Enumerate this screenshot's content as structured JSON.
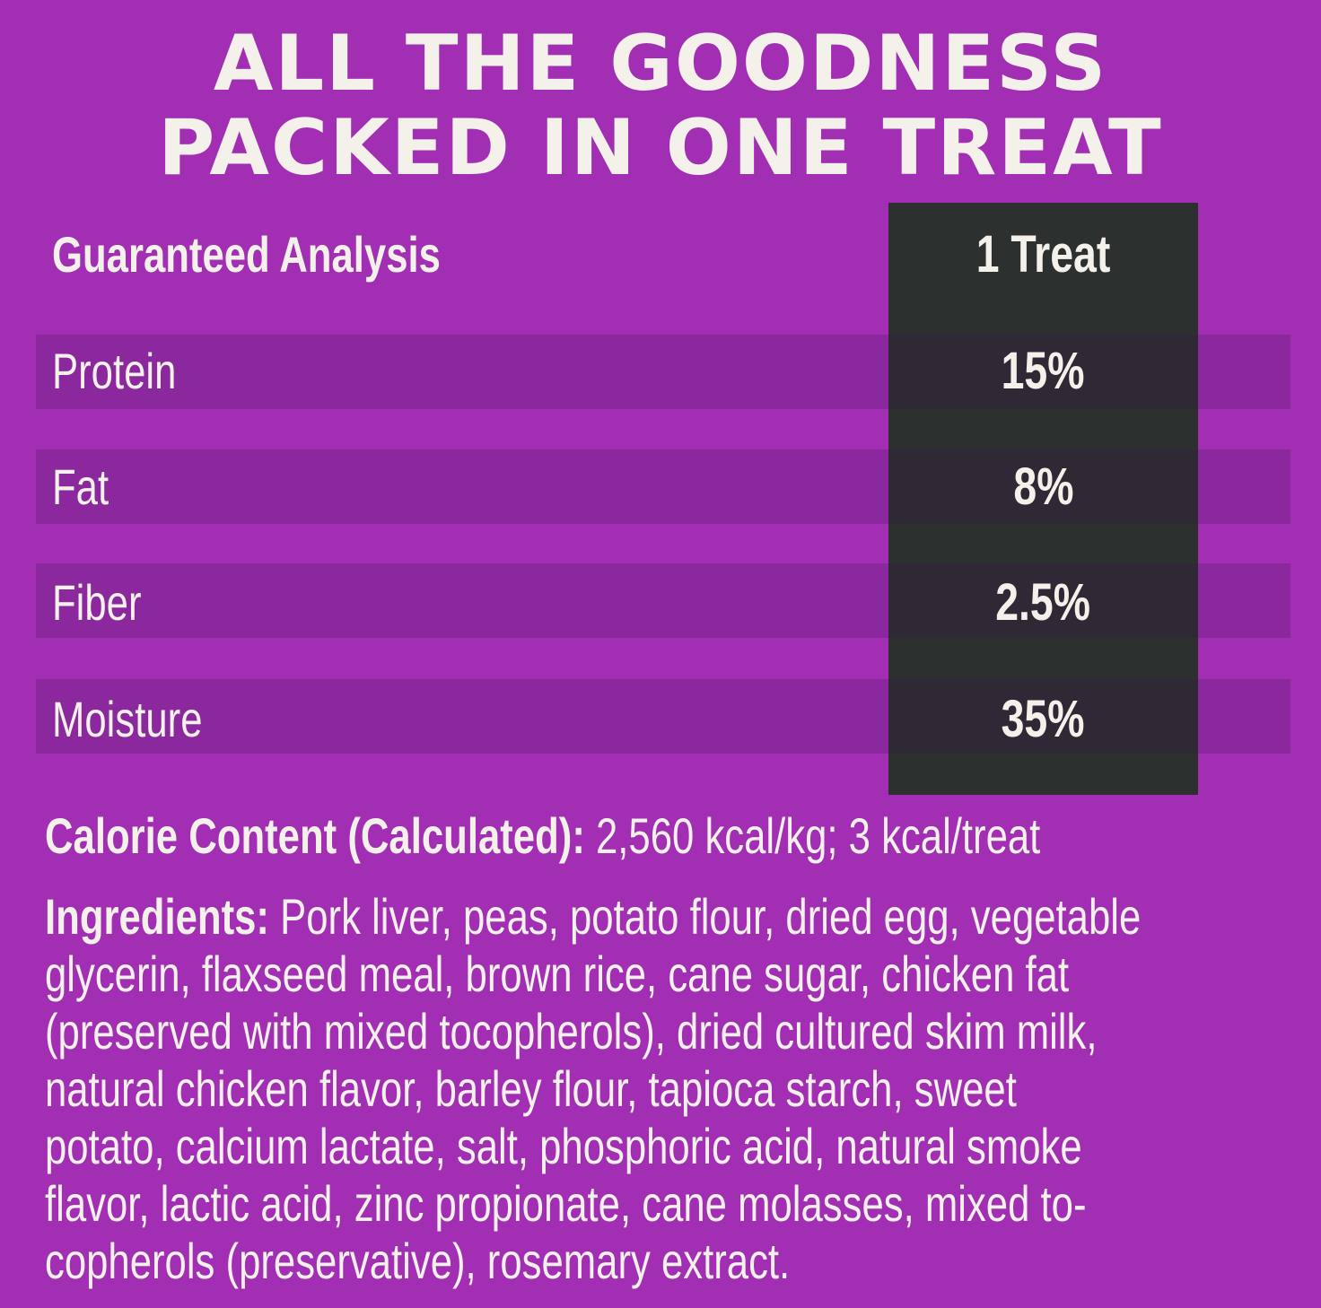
{
  "headline": {
    "line1": "ALL THE GOODNESS",
    "line2": "PACKED IN ONE TREAT"
  },
  "table": {
    "header_label": "Guaranteed Analysis",
    "column_header": "1 Treat",
    "rows": [
      {
        "label": "Protein",
        "value": "15%"
      },
      {
        "label": "Fat",
        "value": "8%"
      },
      {
        "label": "Fiber",
        "value": "2.5%"
      },
      {
        "label": "Moisture",
        "value": "35%"
      }
    ]
  },
  "calorie": {
    "label": "Calorie Content (Calculated):",
    "value": " 2,560 kcal/kg; 3 kcal/treat"
  },
  "ingredients": {
    "label": "Ingredients:",
    "lines": [
      " Pork liver, peas, potato flour, dried egg, vegetable",
      "glycerin, flaxseed meal, brown rice, cane sugar, chicken fat",
      "(preserved with mixed tocopherols), dried cultured skim milk,",
      "natural chicken flavor, barley flour, tapioca starch, sweet",
      "potato, calcium lactate, salt, phosphoric acid, natural smoke",
      "flavor, lactic acid, zinc propionate, cane molasses, mixed to-",
      "copherols (preservative), rosemary extract."
    ]
  },
  "colors": {
    "background": "#a22fb3",
    "value_column": "#2c302f",
    "text": "#f4f1ea"
  }
}
